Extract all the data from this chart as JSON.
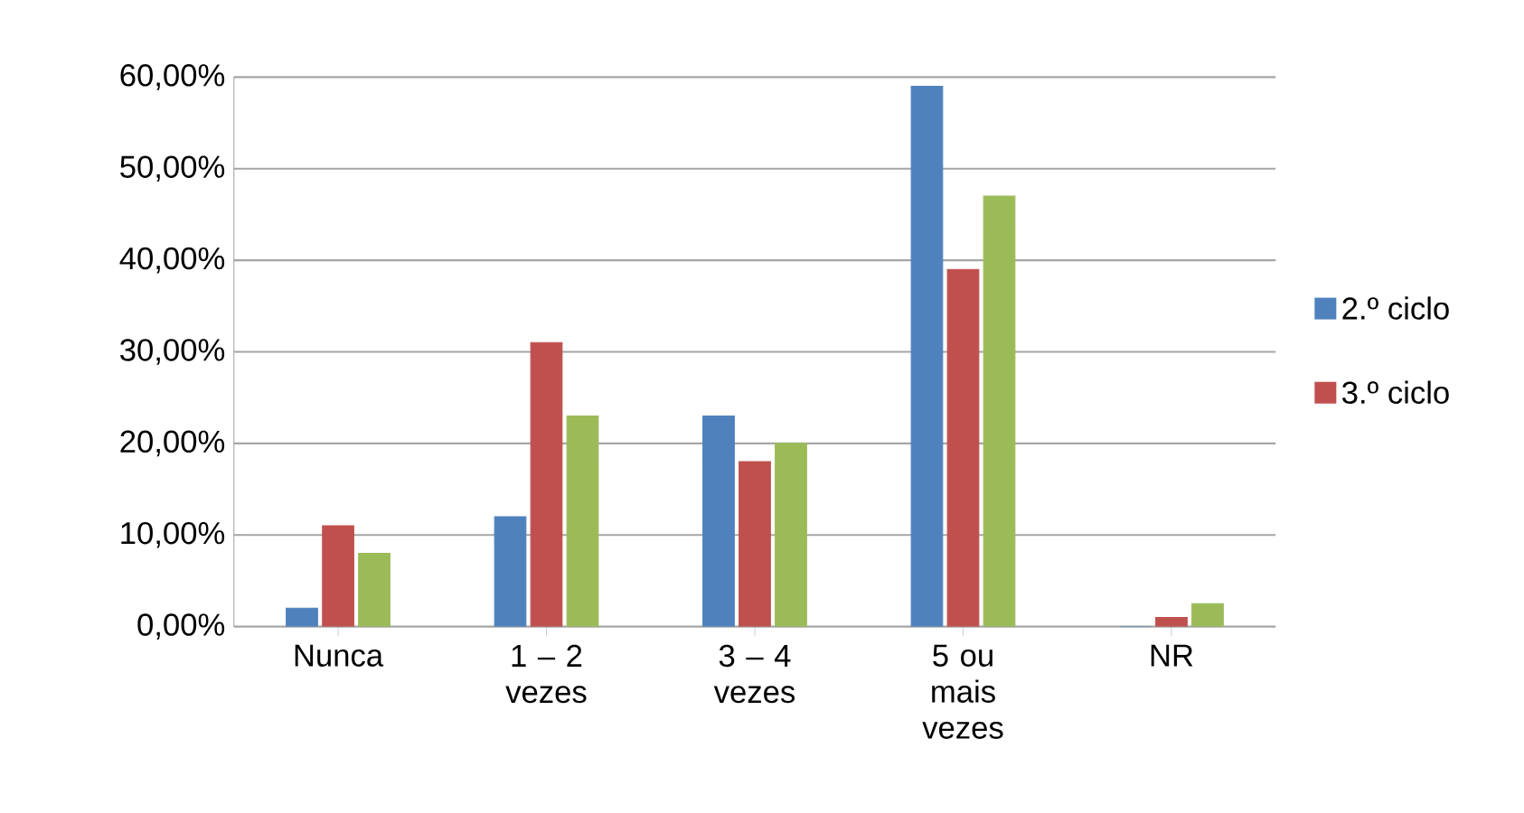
{
  "chart_data": {
    "type": "bar",
    "categories": [
      "Nunca",
      "1 – 2 vezes",
      "3 – 4 vezes",
      "5 ou mais vezes",
      "NR"
    ],
    "series": [
      {
        "name": "2.º ciclo",
        "color": "#4f81bd",
        "values": [
          2,
          12,
          23,
          59,
          0
        ]
      },
      {
        "name": "3.º ciclo",
        "color": "#c0504d",
        "values": [
          11,
          31,
          18,
          39,
          1
        ]
      },
      {
        "color": "#9bbb59",
        "values": [
          8,
          23,
          20,
          47,
          2.5
        ]
      }
    ],
    "ylim": [
      0,
      60
    ],
    "yticks": [
      {
        "value": 0,
        "label": "0,00%"
      },
      {
        "value": 10,
        "label": "10,00%"
      },
      {
        "value": 20,
        "label": "20,00%"
      },
      {
        "value": 30,
        "label": "30,00%"
      },
      {
        "value": 40,
        "label": "40,00%"
      },
      {
        "value": 50,
        "label": "50,00%"
      },
      {
        "value": 60,
        "label": "60,00%"
      }
    ],
    "grid": "y",
    "legend": "right"
  }
}
